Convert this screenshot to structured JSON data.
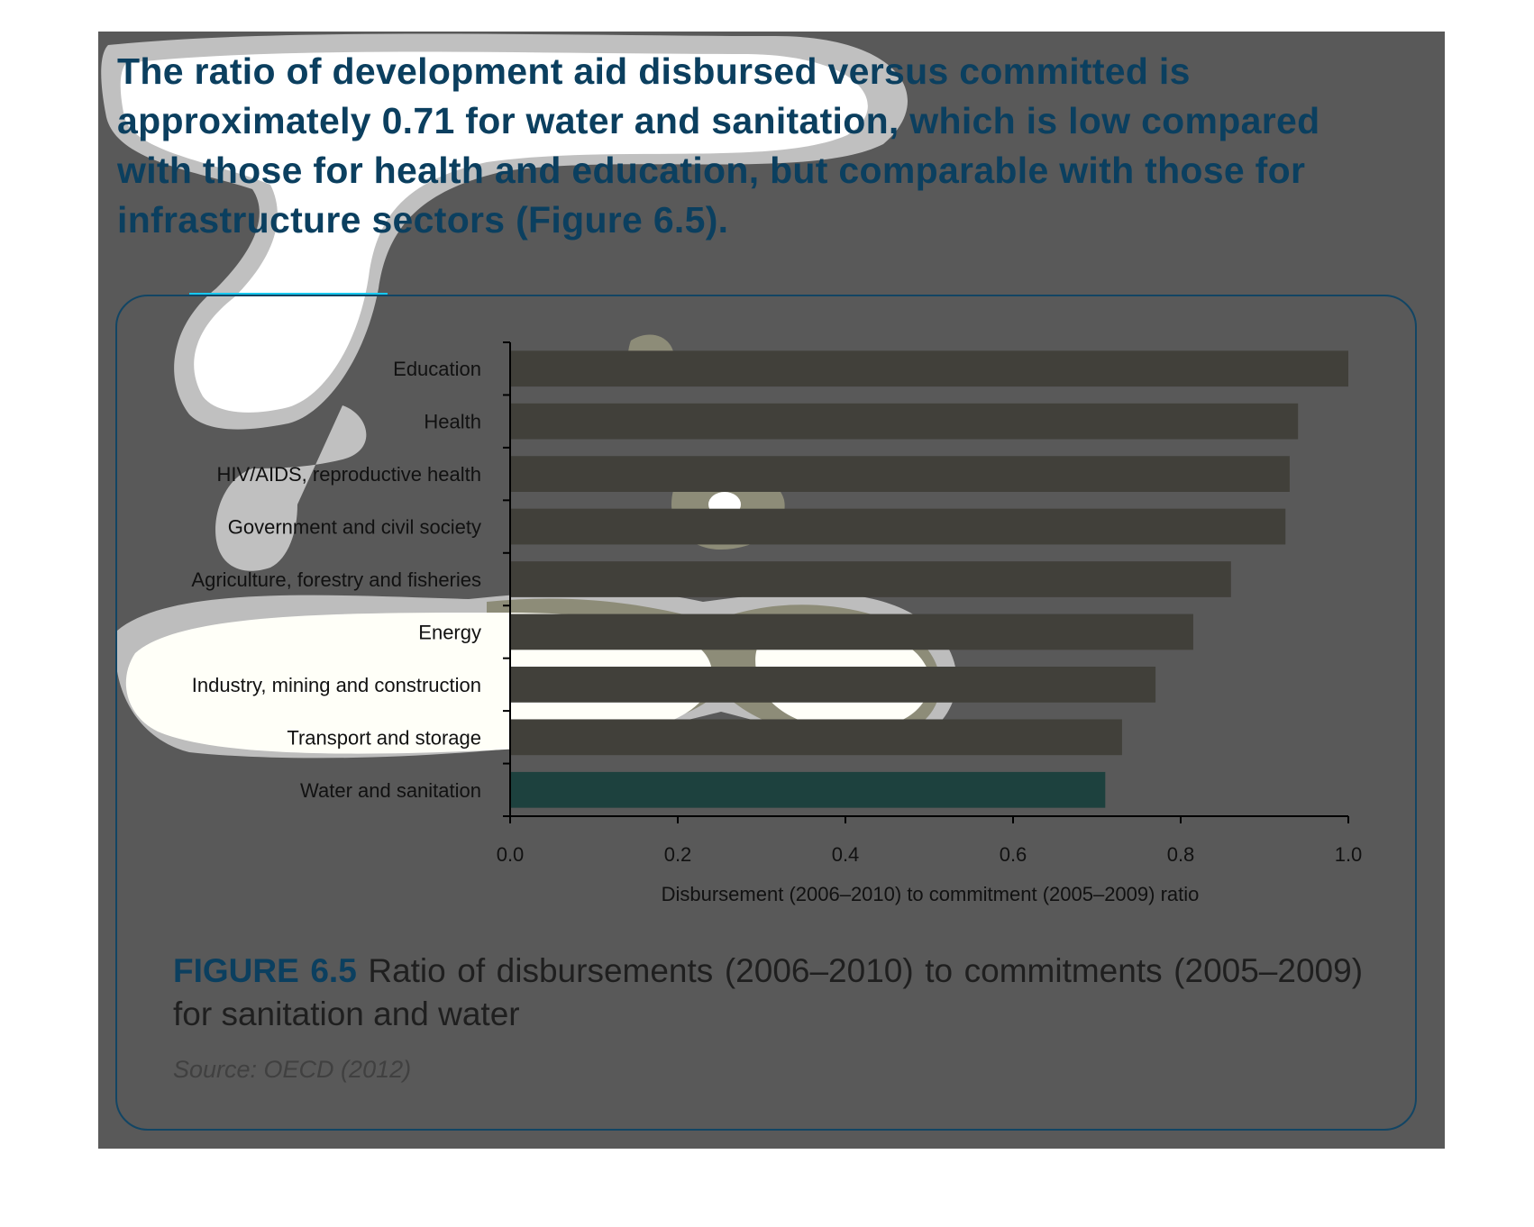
{
  "headline": "The ratio of development aid disbursed versus committed is approximately 0.71 for water and sanitation, which is low compared with those for health and education, but comparable with those for infrastructure sectors (Figure 6.5).",
  "figure": {
    "number": "FIGURE 6.5",
    "caption": "Ratio of disbursements (2006–2010) to commitments (2005–2009) for sanitation and water",
    "source": "Source: OECD (2012)"
  },
  "colors": {
    "panel_background": "#595959",
    "headline": "#0b3f5f",
    "bar_default": "#41403a",
    "bar_highlight": "#1d413e",
    "accent_line": "#18c8ef",
    "frame": "#124564"
  },
  "chart_data": {
    "type": "bar",
    "orientation": "horizontal",
    "title": "",
    "xlabel": "Disbursement (2006–2010) to commitment (2005–2009) ratio",
    "ylabel": "",
    "xlim": [
      0,
      1.0
    ],
    "x_ticks": [
      "0.0",
      "0.2",
      "0.4",
      "0.6",
      "0.8",
      "1.0"
    ],
    "grid": false,
    "legend": "none",
    "highlighted_category": "Water and sanitation",
    "categories": [
      "Education",
      "Health",
      "HIV/AIDS, reproductive health",
      "Government and civil society",
      "Agriculture, forestry and fisheries",
      "Energy",
      "Industry, mining and construction",
      "Transport and storage",
      "Water and sanitation"
    ],
    "values": [
      1.0,
      0.94,
      0.93,
      0.925,
      0.86,
      0.815,
      0.77,
      0.73,
      0.71
    ]
  }
}
